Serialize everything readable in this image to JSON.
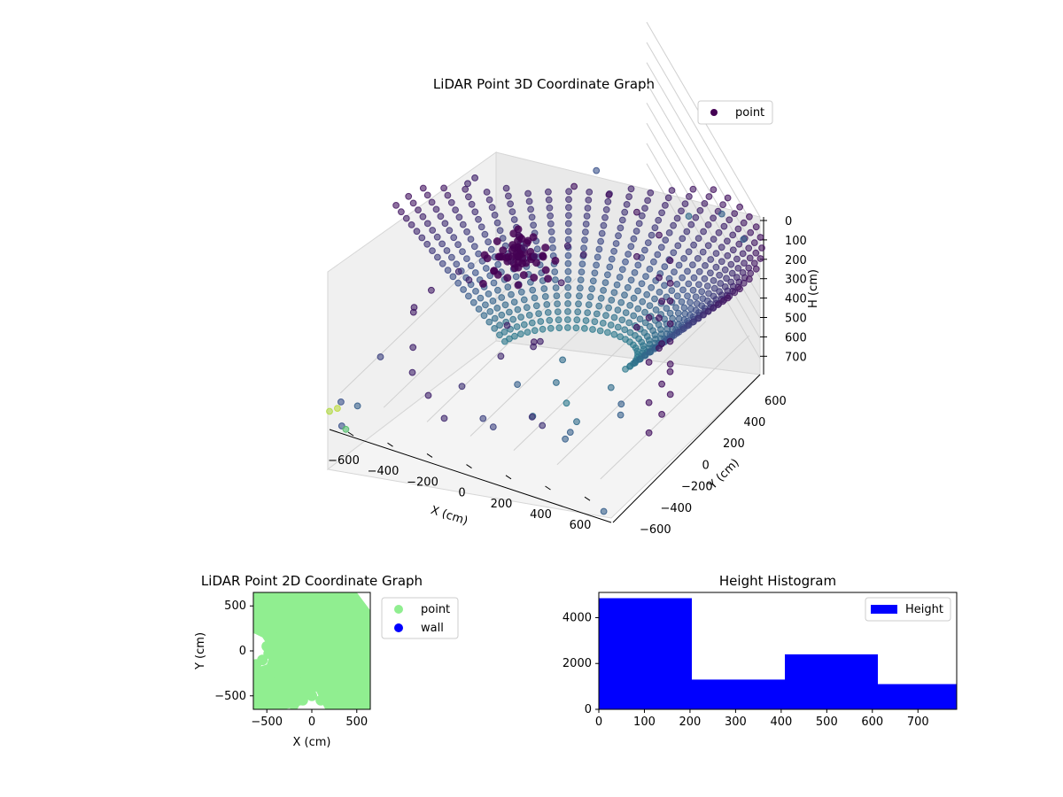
{
  "chart_data": [
    {
      "type": "scatter3d",
      "title": "LiDAR Point 3D Coordinate Graph",
      "xlabel": "X (cm)",
      "ylabel": "Y (cm)",
      "zlabel": "H (cm)",
      "xlim": [
        -650,
        650
      ],
      "ylim": [
        -650,
        650
      ],
      "zlim": [
        0,
        780
      ],
      "z_inverted": true,
      "xticks": [
        -600,
        -400,
        -200,
        0,
        200,
        400,
        600
      ],
      "yticks": [
        -600,
        -400,
        -200,
        0,
        200,
        400,
        600
      ],
      "zticks": [
        0,
        100,
        200,
        300,
        400,
        500,
        600,
        700
      ],
      "colormap": "viridis",
      "legend": {
        "position": "top-right",
        "entries": [
          {
            "label": "point",
            "color": "#440154"
          }
        ]
      },
      "grid": true,
      "series": [
        {
          "name": "point",
          "description_points": "dense dome/cylinder of points; sampled representative points below",
          "points": [
            [
              560,
              -150,
              80,
              0.05
            ],
            [
              540,
              0,
              90,
              0.05
            ],
            [
              500,
              150,
              100,
              0.05
            ],
            [
              420,
              300,
              100,
              0.05
            ],
            [
              300,
              430,
              90,
              0.05
            ],
            [
              150,
              520,
              80,
              0.05
            ],
            [
              0,
              560,
              70,
              0.05
            ],
            [
              -150,
              540,
              70,
              0.05
            ],
            [
              560,
              -150,
              300,
              0.05
            ],
            [
              540,
              0,
              300,
              0.05
            ],
            [
              500,
              150,
              300,
              0.05
            ],
            [
              420,
              300,
              300,
              0.05
            ],
            [
              300,
              430,
              300,
              0.05
            ],
            [
              150,
              520,
              300,
              0.05
            ],
            [
              560,
              -150,
              500,
              0.05
            ],
            [
              540,
              0,
              500,
              0.05
            ],
            [
              500,
              150,
              500,
              0.05
            ],
            [
              420,
              300,
              500,
              0.05
            ],
            [
              300,
              430,
              500,
              0.05
            ],
            [
              560,
              -150,
              650,
              0.05
            ],
            [
              540,
              0,
              650,
              0.05
            ],
            [
              500,
              150,
              650,
              0.05
            ],
            [
              420,
              300,
              650,
              0.05
            ],
            [
              300,
              430,
              650,
              0.05
            ],
            [
              150,
              520,
              650,
              0.05
            ],
            [
              200,
              -100,
              750,
              0.35
            ],
            [
              100,
              0,
              750,
              0.4
            ],
            [
              0,
              100,
              740,
              0.35
            ],
            [
              300,
              100,
              740,
              0.3
            ],
            [
              200,
              200,
              750,
              0.35
            ],
            [
              -100,
              -50,
              700,
              0.3
            ],
            [
              50,
              -200,
              720,
              0.35
            ],
            [
              -50,
              250,
              730,
              0.35
            ],
            [
              250,
              -250,
              700,
              0.3
            ],
            [
              350,
              0,
              720,
              0.3
            ],
            [
              -100,
              150,
              600,
              0.1
            ],
            [
              -50,
              0,
              500,
              0.08
            ],
            [
              0,
              -100,
              450,
              0.1
            ],
            [
              -150,
              -100,
              550,
              0.12
            ],
            [
              -200,
              50,
              500,
              0.1
            ],
            [
              -500,
              -200,
              400,
              0.08
            ],
            [
              -550,
              -100,
              450,
              0.08
            ],
            [
              -450,
              -300,
              500,
              0.1
            ],
            [
              -400,
              -400,
              550,
              0.1
            ],
            [
              -550,
              50,
              450,
              0.08
            ],
            [
              -300,
              -450,
              600,
              0.1
            ],
            [
              -200,
              -500,
              650,
              0.12
            ],
            [
              -600,
              -300,
              600,
              0.2
            ],
            [
              -450,
              100,
              350,
              0.1
            ],
            [
              -350,
              0,
              300,
              0.1
            ],
            [
              100,
              -300,
              650,
              0.15
            ],
            [
              200,
              -400,
              600,
              0.15
            ],
            [
              -100,
              -350,
              700,
              0.2
            ],
            [
              0,
              -450,
              650,
              0.2
            ],
            [
              -250,
              -250,
              650,
              0.15
            ],
            [
              -100,
              100,
              150,
              0.08
            ],
            [
              0,
              200,
              120,
              0.08
            ],
            [
              100,
              150,
              100,
              0.08
            ],
            [
              -200,
              200,
              200,
              0.08
            ],
            [
              50,
              50,
              200,
              0.08
            ],
            [
              -620,
              -600,
              780,
              0.25
            ],
            [
              -600,
              -500,
              730,
              0.3
            ],
            [
              -650,
              -550,
              700,
              0.25
            ],
            [
              400,
              500,
              0,
              0.35
            ],
            [
              500,
              600,
              10,
              0.3
            ],
            [
              600,
              600,
              100,
              0.3
            ],
            [
              -650,
              620,
              250,
              0.1
            ],
            [
              -620,
              500,
              200,
              0.1
            ],
            [
              -100,
              640,
              30,
              0.25
            ],
            [
              600,
              -620,
              760,
              0.3
            ],
            [
              -650,
              -650,
              690,
              0.88
            ],
            [
              -640,
              -600,
              700,
              0.9
            ],
            [
              -580,
              -640,
              760,
              0.7
            ],
            [
              200,
              -200,
              780,
              0.3
            ]
          ]
        }
      ]
    },
    {
      "type": "scatter",
      "title": "LiDAR Point 2D Coordinate Graph",
      "xlabel": "X (cm)",
      "ylabel": "Y (cm)",
      "xlim": [
        -650,
        650
      ],
      "ylim": [
        -650,
        650
      ],
      "xticks": [
        -500,
        0,
        500
      ],
      "yticks": [
        -500,
        0,
        500
      ],
      "legend": {
        "position": "outside-right",
        "entries": [
          {
            "label": "point",
            "color": "#90ee90"
          },
          {
            "label": "wall",
            "color": "#0000ff"
          }
        ]
      },
      "series": [
        {
          "name": "point",
          "color": "#90ee90",
          "polygon": [
            [
              -650,
              650
            ],
            [
              500,
              650
            ],
            [
              650,
              450
            ],
            [
              650,
              -650
            ],
            [
              150,
              -650
            ],
            [
              50,
              -450
            ],
            [
              -100,
              -600
            ],
            [
              -300,
              -650
            ],
            [
              -650,
              -650
            ],
            [
              -650,
              -200
            ],
            [
              -500,
              -150
            ],
            [
              -450,
              0
            ],
            [
              -550,
              150
            ],
            [
              -650,
              200
            ]
          ],
          "points": [
            [
              -620,
              250
            ],
            [
              -560,
              230
            ],
            [
              -500,
              200
            ],
            [
              -420,
              150
            ],
            [
              -350,
              100
            ],
            [
              -300,
              50
            ],
            [
              -400,
              -50
            ],
            [
              -550,
              -100
            ],
            [
              -620,
              -150
            ],
            [
              -600,
              -300
            ],
            [
              -500,
              -400
            ],
            [
              -400,
              -500
            ],
            [
              -300,
              -550
            ],
            [
              -200,
              -600
            ],
            [
              -100,
              -550
            ],
            [
              0,
              -500
            ],
            [
              100,
              -550
            ],
            [
              200,
              -600
            ],
            [
              300,
              -500
            ],
            [
              400,
              -550
            ],
            [
              500,
              -600
            ],
            [
              -250,
              -150
            ],
            [
              -150,
              -250
            ],
            [
              -50,
              -300
            ],
            [
              -450,
              -250
            ],
            [
              -350,
              -350
            ],
            [
              -250,
              -400
            ],
            [
              -150,
              -450
            ],
            [
              -600,
              -500
            ],
            [
              -550,
              -600
            ],
            [
              450,
              -450
            ],
            [
              350,
              -350
            ],
            [
              250,
              -400
            ],
            [
              -500,
              50
            ],
            [
              -480,
              -30
            ]
          ]
        },
        {
          "name": "wall",
          "color": "#0000ff",
          "points": []
        }
      ]
    },
    {
      "type": "histogram",
      "title": "Height Histogram",
      "xlim": [
        0,
        785
      ],
      "ylim": [
        0,
        5100
      ],
      "xticks": [
        0,
        100,
        200,
        300,
        400,
        500,
        600,
        700
      ],
      "yticks": [
        0,
        2000,
        4000
      ],
      "legend": {
        "position": "top-right",
        "entries": [
          {
            "label": "Height",
            "color": "#0000ff"
          }
        ]
      },
      "series": [
        {
          "name": "Height",
          "color": "#0000ff",
          "bins": [
            {
              "x0": 0,
              "x1": 204,
              "count": 4850
            },
            {
              "x0": 204,
              "x1": 408,
              "count": 1300
            },
            {
              "x0": 408,
              "x1": 612,
              "count": 2400
            },
            {
              "x0": 612,
              "x1": 785,
              "count": 1100
            }
          ]
        }
      ]
    }
  ]
}
